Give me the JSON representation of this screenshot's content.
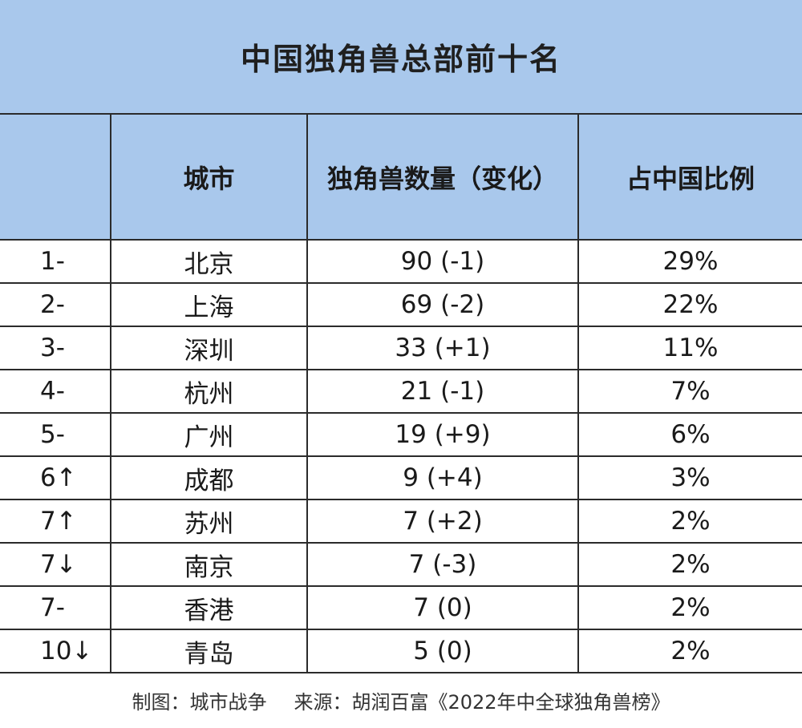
{
  "title": "中国独角兽总部前十名",
  "headers": {
    "rank": "",
    "city": "城市",
    "count": "独角兽数量（变化）",
    "share": "占中国比例"
  },
  "rows": [
    {
      "rank": "1-",
      "city": "北京",
      "count": "90 (-1)",
      "share": "29%"
    },
    {
      "rank": "2-",
      "city": "上海",
      "count": "69 (-2)",
      "share": "22%"
    },
    {
      "rank": "3-",
      "city": "深圳",
      "count": "33 (+1)",
      "share": "11%"
    },
    {
      "rank": "4-",
      "city": "杭州",
      "count": "21 (-1)",
      "share": "7%"
    },
    {
      "rank": "5-",
      "city": "广州",
      "count": "19 (+9)",
      "share": "6%"
    },
    {
      "rank": "6↑",
      "city": "成都",
      "count": "9 (+4)",
      "share": "3%"
    },
    {
      "rank": "7↑",
      "city": "苏州",
      "count": "7 (+2)",
      "share": "2%"
    },
    {
      "rank": "7↓",
      "city": "南京",
      "count": "7 (-3)",
      "share": "2%"
    },
    {
      "rank": "7-",
      "city": "香港",
      "count": "7 (0)",
      "share": "2%"
    },
    {
      "rank": "10↓",
      "city": "青岛",
      "count": "5 (0)",
      "share": "2%"
    }
  ],
  "footer": {
    "maker": "制图：城市战争",
    "source": "来源：胡润百富《2022年中全球独角兽榜》"
  }
}
